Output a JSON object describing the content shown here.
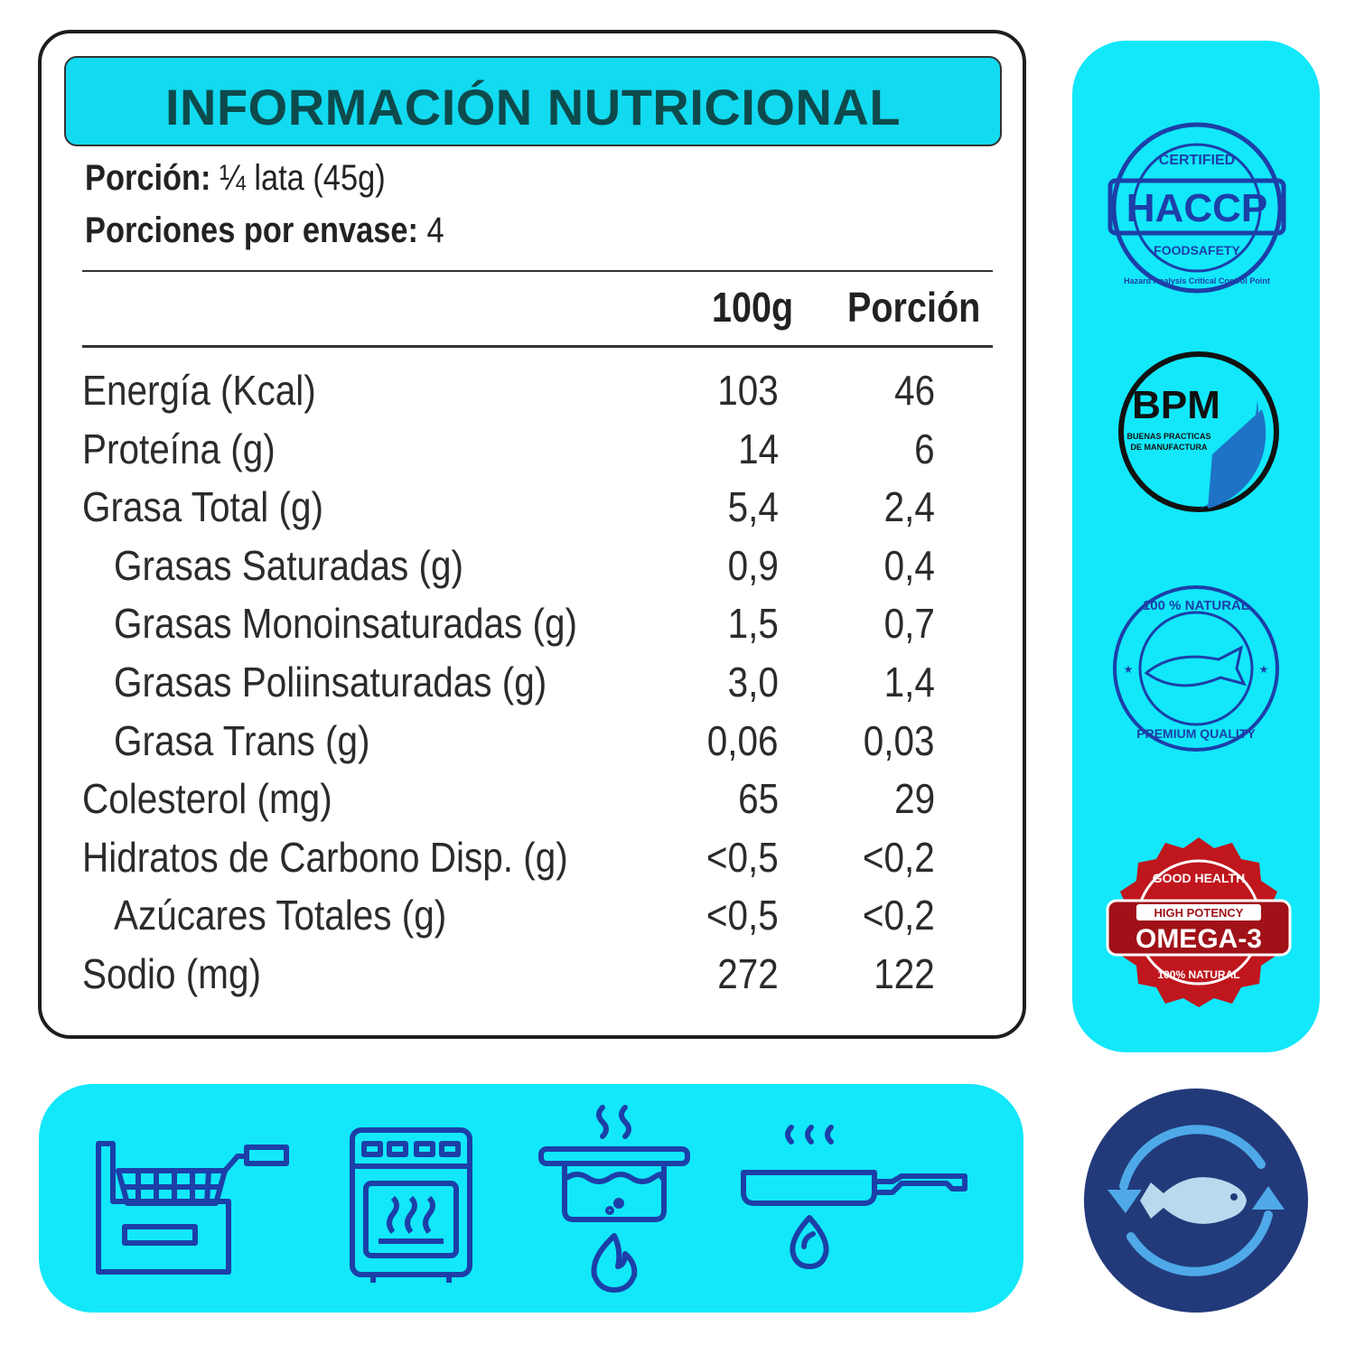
{
  "title": "INFORMACIÓN NUTRICIONAL",
  "serving": {
    "portion_label": "Porción:",
    "portion_value": "¼ lata (45g)",
    "per_pack_label": "Porciones por envase:",
    "per_pack_value": "4"
  },
  "columns": [
    "100g",
    "Porción"
  ],
  "rows": [
    {
      "label": "Energía (Kcal)",
      "per100": "103",
      "portion": "46",
      "indent": false
    },
    {
      "label": "Proteína (g)",
      "per100": "14",
      "portion": "6",
      "indent": false
    },
    {
      "label": "Grasa Total (g)",
      "per100": "5,4",
      "portion": "2,4",
      "indent": false
    },
    {
      "label": "Grasas Saturadas (g)",
      "per100": "0,9",
      "portion": "0,4",
      "indent": true
    },
    {
      "label": "Grasas Monoinsaturadas (g)",
      "per100": "1,5",
      "portion": "0,7",
      "indent": true
    },
    {
      "label": "Grasas Poliinsaturadas (g)",
      "per100": "3,0",
      "portion": "1,4",
      "indent": true
    },
    {
      "label": "Grasa Trans (g)",
      "per100": "0,06",
      "portion": "0,03",
      "indent": true
    },
    {
      "label": "Colesterol (mg)",
      "per100": "65",
      "portion": "29",
      "indent": false
    },
    {
      "label": "Hidratos de Carbono Disp. (g)",
      "per100": "<0,5",
      "portion": "<0,2",
      "indent": false
    },
    {
      "label": "Azúcares Totales (g)",
      "per100": "<0,5",
      "portion": "<0,2",
      "indent": true
    },
    {
      "label": "Sodio (mg)",
      "per100": "272",
      "portion": "122",
      "indent": false
    }
  ],
  "badges": {
    "haccp": {
      "top": "CERTIFIED",
      "main": "HACCP",
      "sub": "FOODSAFETY",
      "ring": "Hazard Analysis Critical Control Point"
    },
    "bpm": {
      "main": "BPM",
      "line1": "BUENAS PRACTICAS",
      "line2": "DE MANUFACTURA"
    },
    "natural": {
      "top": "100 % NATURAL",
      "bottom": "PREMIUM QUALITY"
    },
    "omega": {
      "top": "GOOD HEALTH",
      "ribbon": "HIGH POTENCY",
      "main": "OMEGA-3",
      "bottom": "100% NATURAL"
    }
  },
  "icons": [
    "deep-fryer-icon",
    "oven-icon",
    "boiling-pot-icon",
    "frying-pan-icon",
    "sustainable-fish-icon"
  ],
  "colors": {
    "cyan": "#12e8fa",
    "title_bar": "#12daf0",
    "title_text": "#0e4a4c",
    "icon_blue": "#1c3fa8",
    "badge_navy": "#223a7a",
    "omega_red": "#c0161d"
  }
}
